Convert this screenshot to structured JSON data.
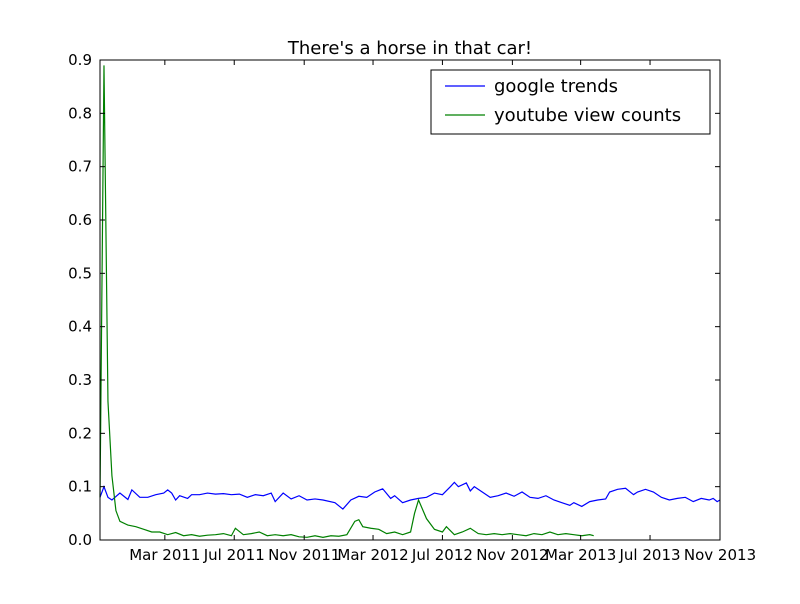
{
  "chart_data": {
    "type": "line",
    "title": "There's a horse in that car!",
    "xlabel": "",
    "ylabel": "",
    "xlim": [
      "2010-11-07",
      "2013-11-01"
    ],
    "ylim": [
      0,
      0.9
    ],
    "yticks": [
      0.0,
      0.1,
      0.2,
      0.3,
      0.4,
      0.5,
      0.6,
      0.7,
      0.8,
      0.9
    ],
    "ytick_labels": [
      "0.0",
      "0.1",
      "0.2",
      "0.3",
      "0.4",
      "0.5",
      "0.6",
      "0.7",
      "0.8",
      "0.9"
    ],
    "xticks": [
      "2011-03-01",
      "2011-07-01",
      "2011-11-01",
      "2012-03-01",
      "2012-07-01",
      "2012-11-01",
      "2013-03-01",
      "2013-07-01",
      "2013-11-01"
    ],
    "xtick_labels": [
      "Mar 2011",
      "Jul 2011",
      "Nov 2011",
      "Mar 2012",
      "Jul 2012",
      "Nov 2012",
      "Mar 2013",
      "Jul 2013",
      "Nov 2013"
    ],
    "grid": false,
    "legend_position": "top-right",
    "series": [
      {
        "name": "google trends",
        "color": "#0000ff",
        "points": [
          [
            "2010-11-07",
            0.08
          ],
          [
            "2010-11-14",
            0.1
          ],
          [
            "2010-11-21",
            0.08
          ],
          [
            "2010-11-28",
            0.075
          ],
          [
            "2010-12-12",
            0.088
          ],
          [
            "2010-12-26",
            0.076
          ],
          [
            "2011-01-02",
            0.094
          ],
          [
            "2011-01-16",
            0.08
          ],
          [
            "2011-01-30",
            0.08
          ],
          [
            "2011-02-13",
            0.085
          ],
          [
            "2011-02-27",
            0.088
          ],
          [
            "2011-03-06",
            0.094
          ],
          [
            "2011-03-13",
            0.088
          ],
          [
            "2011-03-20",
            0.075
          ],
          [
            "2011-03-27",
            0.083
          ],
          [
            "2011-04-10",
            0.078
          ],
          [
            "2011-04-17",
            0.085
          ],
          [
            "2011-05-01",
            0.085
          ],
          [
            "2011-05-15",
            0.088
          ],
          [
            "2011-05-29",
            0.086
          ],
          [
            "2011-06-12",
            0.087
          ],
          [
            "2011-06-26",
            0.085
          ],
          [
            "2011-07-10",
            0.086
          ],
          [
            "2011-07-24",
            0.08
          ],
          [
            "2011-08-07",
            0.085
          ],
          [
            "2011-08-21",
            0.083
          ],
          [
            "2011-09-04",
            0.088
          ],
          [
            "2011-09-11",
            0.072
          ],
          [
            "2011-09-25",
            0.088
          ],
          [
            "2011-10-09",
            0.077
          ],
          [
            "2011-10-23",
            0.083
          ],
          [
            "2011-11-06",
            0.075
          ],
          [
            "2011-11-20",
            0.077
          ],
          [
            "2011-12-04",
            0.075
          ],
          [
            "2011-12-25",
            0.07
          ],
          [
            "2012-01-08",
            0.058
          ],
          [
            "2012-01-22",
            0.075
          ],
          [
            "2012-02-05",
            0.082
          ],
          [
            "2012-02-19",
            0.08
          ],
          [
            "2012-03-04",
            0.09
          ],
          [
            "2012-03-18",
            0.096
          ],
          [
            "2012-04-01",
            0.078
          ],
          [
            "2012-04-08",
            0.083
          ],
          [
            "2012-04-22",
            0.07
          ],
          [
            "2012-05-06",
            0.075
          ],
          [
            "2012-05-20",
            0.078
          ],
          [
            "2012-06-03",
            0.08
          ],
          [
            "2012-06-17",
            0.088
          ],
          [
            "2012-07-01",
            0.085
          ],
          [
            "2012-07-15",
            0.1
          ],
          [
            "2012-07-22",
            0.108
          ],
          [
            "2012-07-29",
            0.1
          ],
          [
            "2012-08-12",
            0.107
          ],
          [
            "2012-08-19",
            0.092
          ],
          [
            "2012-08-26",
            0.1
          ],
          [
            "2012-09-09",
            0.09
          ],
          [
            "2012-09-23",
            0.08
          ],
          [
            "2012-10-07",
            0.083
          ],
          [
            "2012-10-21",
            0.088
          ],
          [
            "2012-11-04",
            0.082
          ],
          [
            "2012-11-18",
            0.09
          ],
          [
            "2012-12-02",
            0.08
          ],
          [
            "2012-12-16",
            0.078
          ],
          [
            "2012-12-30",
            0.083
          ],
          [
            "2013-01-13",
            0.075
          ],
          [
            "2013-01-27",
            0.07
          ],
          [
            "2013-02-10",
            0.065
          ],
          [
            "2013-02-17",
            0.07
          ],
          [
            "2013-03-03",
            0.063
          ],
          [
            "2013-03-17",
            0.072
          ],
          [
            "2013-03-31",
            0.075
          ],
          [
            "2013-04-14",
            0.077
          ],
          [
            "2013-04-21",
            0.09
          ],
          [
            "2013-05-05",
            0.095
          ],
          [
            "2013-05-19",
            0.097
          ],
          [
            "2013-06-02",
            0.085
          ],
          [
            "2013-06-09",
            0.09
          ],
          [
            "2013-06-23",
            0.095
          ],
          [
            "2013-07-07",
            0.09
          ],
          [
            "2013-07-21",
            0.08
          ],
          [
            "2013-08-04",
            0.075
          ],
          [
            "2013-08-18",
            0.078
          ],
          [
            "2013-09-01",
            0.08
          ],
          [
            "2013-09-15",
            0.072
          ],
          [
            "2013-09-29",
            0.078
          ],
          [
            "2013-10-13",
            0.075
          ],
          [
            "2013-10-20",
            0.078
          ],
          [
            "2013-10-27",
            0.072
          ],
          [
            "2013-11-01",
            0.075
          ]
        ]
      },
      {
        "name": "youtube view counts",
        "color": "#008000",
        "points": [
          [
            "2010-11-07",
            0.08
          ],
          [
            "2010-11-14",
            0.89
          ],
          [
            "2010-11-21",
            0.26
          ],
          [
            "2010-11-28",
            0.12
          ],
          [
            "2010-12-05",
            0.055
          ],
          [
            "2010-12-12",
            0.035
          ],
          [
            "2010-12-26",
            0.028
          ],
          [
            "2011-01-09",
            0.025
          ],
          [
            "2011-01-23",
            0.02
          ],
          [
            "2011-02-06",
            0.015
          ],
          [
            "2011-02-20",
            0.015
          ],
          [
            "2011-03-06",
            0.01
          ],
          [
            "2011-03-20",
            0.014
          ],
          [
            "2011-04-03",
            0.008
          ],
          [
            "2011-04-17",
            0.01
          ],
          [
            "2011-05-01",
            0.007
          ],
          [
            "2011-05-15",
            0.009
          ],
          [
            "2011-05-29",
            0.01
          ],
          [
            "2011-06-12",
            0.012
          ],
          [
            "2011-06-26",
            0.008
          ],
          [
            "2011-07-03",
            0.022
          ],
          [
            "2011-07-17",
            0.01
          ],
          [
            "2011-07-31",
            0.012
          ],
          [
            "2011-08-14",
            0.015
          ],
          [
            "2011-08-28",
            0.008
          ],
          [
            "2011-09-11",
            0.01
          ],
          [
            "2011-09-25",
            0.008
          ],
          [
            "2011-10-09",
            0.01
          ],
          [
            "2011-10-23",
            0.006
          ],
          [
            "2011-11-06",
            0.005
          ],
          [
            "2011-11-20",
            0.008
          ],
          [
            "2011-12-04",
            0.005
          ],
          [
            "2011-12-18",
            0.008
          ],
          [
            "2012-01-01",
            0.007
          ],
          [
            "2012-01-15",
            0.01
          ],
          [
            "2012-01-29",
            0.035
          ],
          [
            "2012-02-05",
            0.038
          ],
          [
            "2012-02-12",
            0.025
          ],
          [
            "2012-02-26",
            0.022
          ],
          [
            "2012-03-11",
            0.02
          ],
          [
            "2012-03-25",
            0.012
          ],
          [
            "2012-04-08",
            0.015
          ],
          [
            "2012-04-22",
            0.01
          ],
          [
            "2012-05-06",
            0.015
          ],
          [
            "2012-05-13",
            0.05
          ],
          [
            "2012-05-20",
            0.075
          ],
          [
            "2012-06-03",
            0.04
          ],
          [
            "2012-06-17",
            0.02
          ],
          [
            "2012-07-01",
            0.015
          ],
          [
            "2012-07-08",
            0.025
          ],
          [
            "2012-07-22",
            0.01
          ],
          [
            "2012-08-05",
            0.015
          ],
          [
            "2012-08-19",
            0.022
          ],
          [
            "2012-09-02",
            0.012
          ],
          [
            "2012-09-16",
            0.01
          ],
          [
            "2012-09-30",
            0.012
          ],
          [
            "2012-10-14",
            0.01
          ],
          [
            "2012-10-28",
            0.012
          ],
          [
            "2012-11-11",
            0.01
          ],
          [
            "2012-11-25",
            0.008
          ],
          [
            "2012-12-09",
            0.012
          ],
          [
            "2012-12-23",
            0.01
          ],
          [
            "2013-01-06",
            0.015
          ],
          [
            "2013-01-20",
            0.01
          ],
          [
            "2013-02-03",
            0.012
          ],
          [
            "2013-02-17",
            0.01
          ],
          [
            "2013-03-03",
            0.008
          ],
          [
            "2013-03-17",
            0.01
          ],
          [
            "2013-03-24",
            0.008
          ]
        ]
      }
    ]
  }
}
